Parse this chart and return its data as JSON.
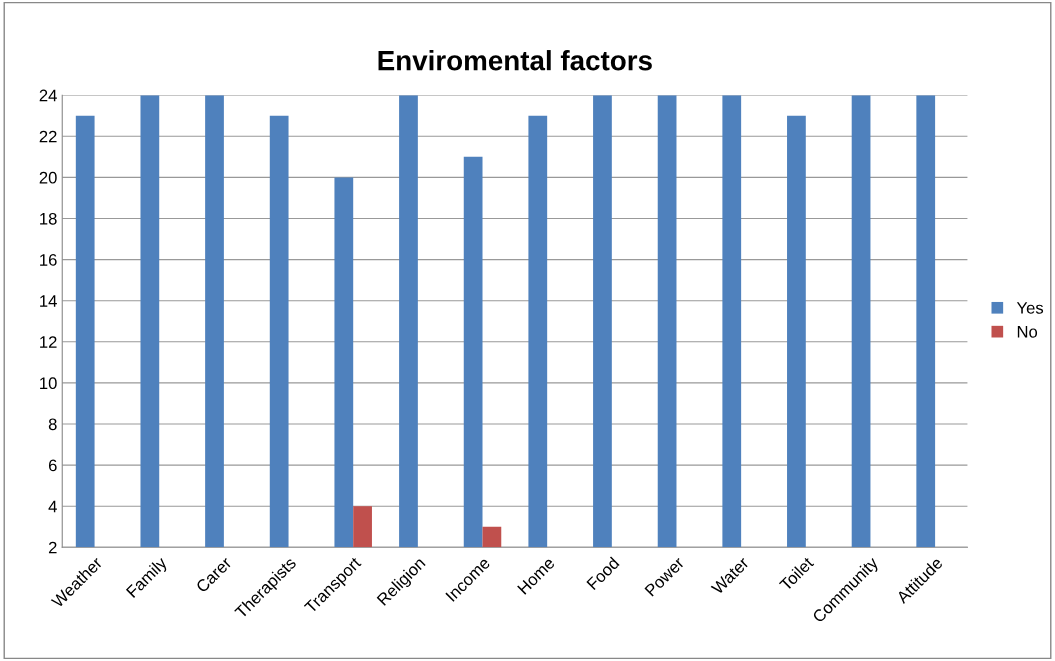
{
  "chart_data": {
    "type": "bar",
    "title": "Enviromental factors",
    "categories": [
      "Weather",
      "Family",
      "Carer",
      "Therapists",
      "Transport",
      "Religion",
      "Income",
      "Home",
      "Food",
      "Power",
      "Water",
      "Toilet",
      "Community",
      "Attitude"
    ],
    "series": [
      {
        "name": "Yes",
        "color": "#4f81bd",
        "values": [
          23,
          24,
          24,
          23,
          20,
          24,
          21,
          23,
          24,
          24,
          24,
          23,
          24,
          24
        ]
      },
      {
        "name": "No",
        "color": "#c0504d",
        "values": [
          null,
          null,
          null,
          null,
          4,
          null,
          3,
          null,
          null,
          null,
          null,
          null,
          null,
          null
        ]
      }
    ],
    "ylim": [
      2,
      24
    ],
    "yticks": [
      2,
      4,
      6,
      8,
      10,
      12,
      14,
      16,
      18,
      20,
      22,
      24
    ],
    "grid": "y",
    "legend": "right"
  }
}
